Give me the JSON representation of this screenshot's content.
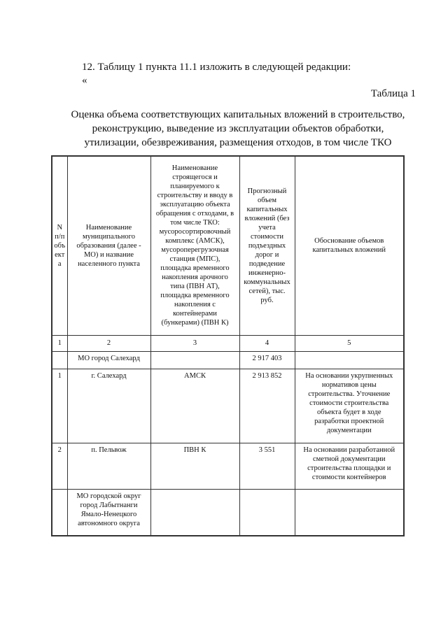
{
  "intro": "12. Таблицу 1 пункта 11.1 изложить в следующей редакции:",
  "quote": "«",
  "table_number": "Таблица 1",
  "title": "Оценка объема соответствующих капитальных вложений в строительство,\nреконструкцию, выведение из эксплуатации объектов обработки,\nутилизации, обезвреживания, размещения отходов, в том числе ТКО",
  "headers": [
    "N\nп/п\nобъ\nект\nа",
    "Наименование\nмуниципального\nобразования (далее -\nМО) и название\nнаселенного пункта",
    "Наименование\nстроящегося и\nпланируемого к\nстроительству и вводу в\nэксплуатацию объекта\nобращения с отходами, в\nтом числе ТКО:\nмусоросортировочный\nкомплекс (АМСК),\nмусороперегрузочная\nстанция (МПС),\nплощадка временного\nнакопления арочного\nтипа (ПВН АТ),\nплощадка временного\nнакопления с\nконтейнерами\n(бункерами) (ПВН К)",
    "Прогнозный\nобъем\nкапитальных\nвложений (без\nучета\nстоимости\nподъездных\nдорог и\nподведение\nинженерно-\nкоммунальных\nсетей), тыс.\nруб.",
    "Обоснование объемов\nкапитальных вложений"
  ],
  "column_numbers": [
    "1",
    "2",
    "3",
    "4",
    "5"
  ],
  "rows": [
    [
      "",
      "МО город Салехард",
      "",
      "2 917 403",
      ""
    ],
    [
      "1",
      "г. Салехард",
      "АМСК",
      "2 913 852",
      "На основании укрупненных\nнормативов цены\nстроительства. Уточнение\nстоимости строительства\nобъекта будет в ходе\nразработки проектной\nдокументации"
    ],
    [
      "2",
      "п. Пельвож",
      "ПВН К",
      "3 551",
      "На основании разработанной\nсметной документации\nстроительства площадки и\nстоимости контейнеров"
    ],
    [
      "",
      "МО городской округ\nгород Лабытнанги\nЯмало-Ненецкого\nавтономного округа",
      "",
      "",
      ""
    ]
  ]
}
